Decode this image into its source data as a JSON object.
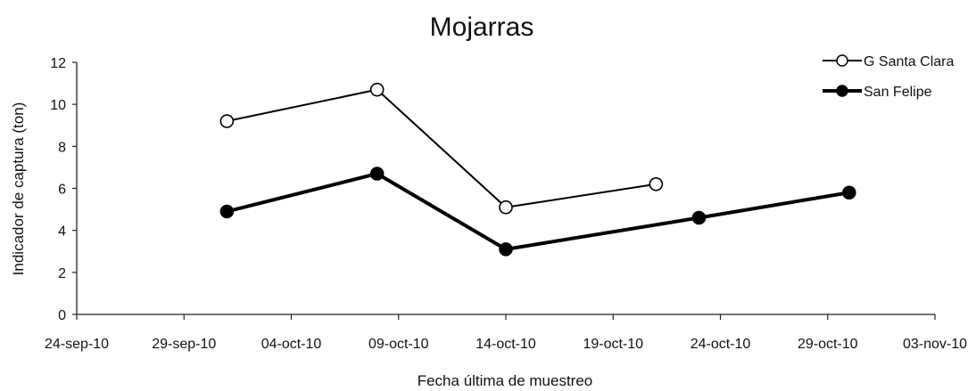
{
  "chart_data": {
    "type": "line",
    "title": "Mojarras",
    "xlabel": "Fecha última de muestreo",
    "ylabel": "Indicador de captura (ton)",
    "x_ticks": [
      "24-sep-10",
      "29-sep-10",
      "04-oct-10",
      "09-oct-10",
      "14-oct-10",
      "19-oct-10",
      "24-oct-10",
      "29-oct-10",
      "03-nov-10"
    ],
    "xlim": [
      "2010-09-24",
      "2010-11-03"
    ],
    "ylim": [
      0,
      12
    ],
    "y_ticks": [
      0,
      2,
      4,
      6,
      8,
      10,
      12
    ],
    "legend_position": "top-right",
    "grid": false,
    "series": [
      {
        "name": "G Santa Clara",
        "marker": "open-circle",
        "color": "#000000",
        "points": [
          {
            "x": "2010-10-01",
            "y": 9.2
          },
          {
            "x": "2010-10-08",
            "y": 10.7
          },
          {
            "x": "2010-10-14",
            "y": 5.1
          },
          {
            "x": "2010-10-21",
            "y": 6.2
          }
        ]
      },
      {
        "name": "San Felipe",
        "marker": "filled-circle",
        "color": "#000000",
        "points": [
          {
            "x": "2010-10-01",
            "y": 4.9
          },
          {
            "x": "2010-10-08",
            "y": 6.7
          },
          {
            "x": "2010-10-14",
            "y": 3.1
          },
          {
            "x": "2010-10-23",
            "y": 4.6
          },
          {
            "x": "2010-10-30",
            "y": 5.8
          }
        ]
      }
    ]
  }
}
